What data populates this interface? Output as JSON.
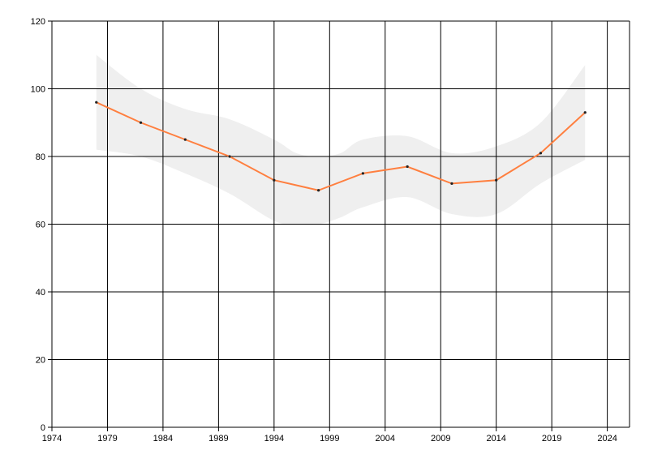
{
  "chart_data": {
    "type": "line",
    "title": "",
    "xlabel": "",
    "ylabel": "",
    "xlim": [
      1974,
      2026
    ],
    "ylim": [
      0,
      120
    ],
    "x_ticks": [
      1974,
      1979,
      1984,
      1989,
      1994,
      1999,
      2004,
      2009,
      2014,
      2019,
      2024
    ],
    "y_ticks": [
      0,
      20,
      40,
      60,
      80,
      100,
      120
    ],
    "grid": true,
    "legend": "none",
    "series": [
      {
        "x": [
          1978,
          1982,
          1986,
          1990,
          1994,
          1998,
          2002,
          2006,
          2010,
          2014,
          2018,
          2022
        ],
        "values": [
          96,
          90,
          85,
          80,
          73,
          70,
          75,
          77,
          72,
          73,
          81,
          93
        ],
        "color": "#ff7f3f"
      }
    ],
    "band": {
      "x": [
        1978,
        1982,
        1986,
        1990,
        1994,
        1996,
        1998,
        2000,
        2002,
        2006,
        2010,
        2014,
        2018,
        2022
      ],
      "upper": [
        110,
        100,
        94,
        91,
        85,
        81,
        80,
        81,
        85,
        86,
        81,
        83,
        90,
        107
      ],
      "lower": [
        82,
        80,
        75,
        69,
        61,
        60,
        60,
        62,
        65,
        68,
        63,
        63,
        72,
        79
      ],
      "color": "#efefef"
    }
  }
}
